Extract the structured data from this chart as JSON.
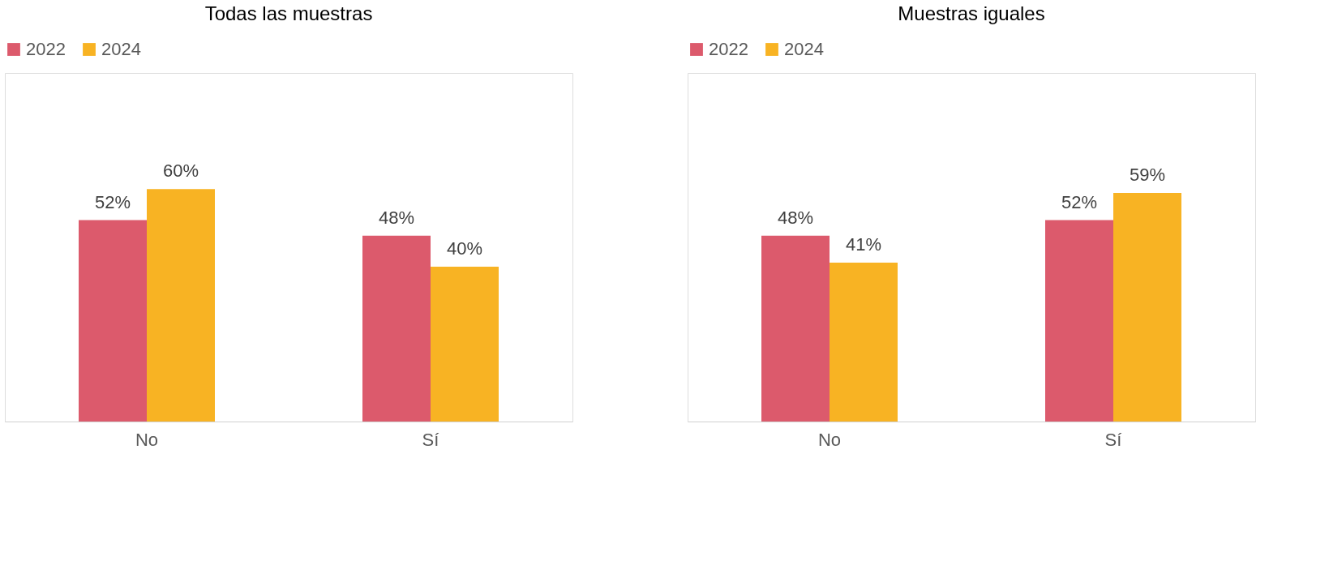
{
  "chart_data": [
    {
      "type": "bar",
      "title": "Todas las muestras",
      "categories": [
        "No",
        "Sí"
      ],
      "legend": "top",
      "ylim": [
        0,
        90
      ],
      "series": [
        {
          "name": "2022",
          "color": "#dc5a6c",
          "values": [
            52,
            48
          ],
          "value_labels": [
            "52%",
            "48%"
          ]
        },
        {
          "name": "2024",
          "color": "#f8b323",
          "values": [
            60,
            40
          ],
          "value_labels": [
            "60%",
            "40%"
          ]
        }
      ]
    },
    {
      "type": "bar",
      "title": "Muestras iguales",
      "categories": [
        "No",
        "Sí"
      ],
      "legend": "top",
      "ylim": [
        0,
        90
      ],
      "series": [
        {
          "name": "2022",
          "color": "#dc5a6c",
          "values": [
            48,
            52
          ],
          "value_labels": [
            "48%",
            "52%"
          ]
        },
        {
          "name": "2024",
          "color": "#f8b323",
          "values": [
            41,
            59
          ],
          "value_labels": [
            "41%",
            "59%"
          ]
        }
      ]
    }
  ]
}
